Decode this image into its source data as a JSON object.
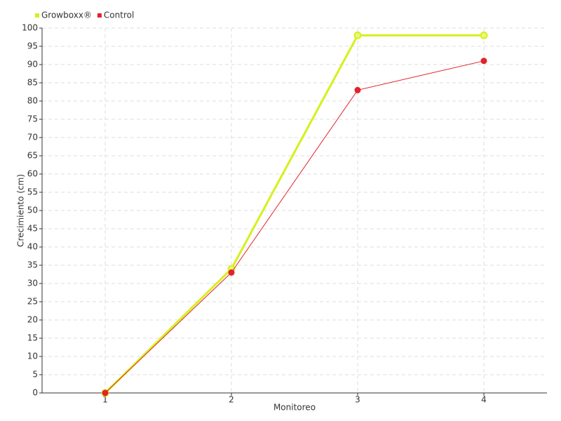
{
  "chart_data": {
    "type": "line",
    "x_label": "Monitoreo",
    "y_label": "Crecimiento (cm)",
    "categories": [
      "1",
      "2",
      "3",
      "4"
    ],
    "series": [
      {
        "name": "Growboxx®",
        "color": "#d6f01c",
        "values": [
          0,
          34,
          98,
          98
        ]
      },
      {
        "name": "Control",
        "color": "#e3222b",
        "values": [
          0,
          33,
          83,
          91
        ]
      }
    ],
    "ylim": [
      0,
      100
    ],
    "yticks": [
      0,
      5,
      10,
      15,
      20,
      25,
      30,
      35,
      40,
      45,
      50,
      55,
      60,
      65,
      70,
      75,
      80,
      85,
      90,
      95,
      100
    ],
    "grid": true,
    "legend": "top-left"
  }
}
